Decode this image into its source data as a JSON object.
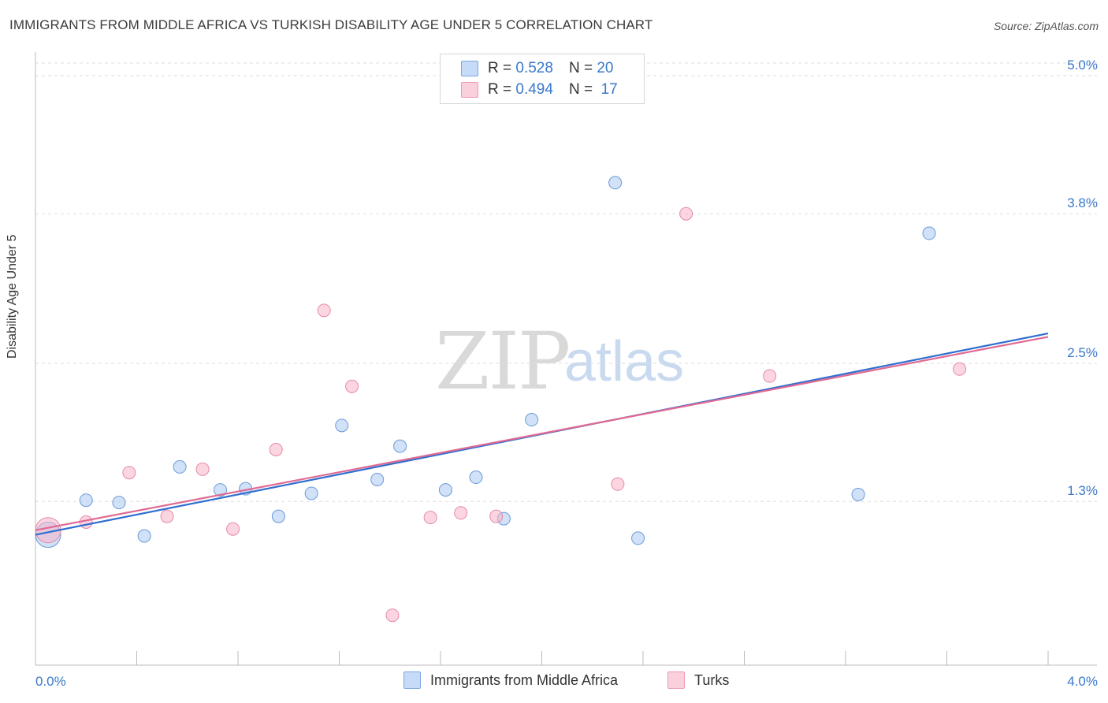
{
  "header": {
    "title": "IMMIGRANTS FROM MIDDLE AFRICA VS TURKISH DISABILITY AGE UNDER 5 CORRELATION CHART",
    "source": "Source: ZipAtlas.com"
  },
  "legend_top": {
    "rows": [
      {
        "r_label": "R =",
        "r_value": "0.528",
        "n_label": "N =",
        "n_value": "20",
        "color": "#a9c8f2"
      },
      {
        "r_label": "R =",
        "r_value": "0.494",
        "n_label": "N =",
        "n_value": "17",
        "color": "#f7b5c8"
      }
    ]
  },
  "legend_bottom": {
    "items": [
      {
        "label": "Immigrants from Middle Africa",
        "color": "#a9c8f2"
      },
      {
        "label": "Turks",
        "color": "#f7b5c8"
      }
    ]
  },
  "watermark": {
    "zip": "ZIP",
    "atlas": "atlas"
  },
  "chart_data": {
    "type": "scatter",
    "title": "IMMIGRANTS FROM MIDDLE AFRICA VS TURKISH DISABILITY AGE UNDER 5 CORRELATION CHART",
    "xlabel": "",
    "ylabel": "Disability Age Under 5",
    "xlim": [
      0.0,
      4.0
    ],
    "ylim": [
      0.0,
      5.0
    ],
    "x_tick_labels": [
      "0.0%",
      "4.0%"
    ],
    "y_ticks": [
      1.3,
      2.5,
      3.8,
      5.0
    ],
    "y_tick_labels": [
      "1.3%",
      "2.5%",
      "3.8%",
      "5.0%"
    ],
    "grid": true,
    "legend_position": "top-center",
    "series": [
      {
        "name": "Immigrants from Middle Africa",
        "color": "#a9c8f2",
        "edge": "#6a9bd8",
        "line_color": "#2f6fd0",
        "points": [
          {
            "x": 0.05,
            "y": 1.01,
            "big": true
          },
          {
            "x": 0.2,
            "y": 1.31
          },
          {
            "x": 0.33,
            "y": 1.29
          },
          {
            "x": 0.43,
            "y": 1.0
          },
          {
            "x": 0.57,
            "y": 1.6
          },
          {
            "x": 0.73,
            "y": 1.4
          },
          {
            "x": 0.83,
            "y": 1.41
          },
          {
            "x": 0.96,
            "y": 1.17
          },
          {
            "x": 1.09,
            "y": 1.37
          },
          {
            "x": 1.21,
            "y": 1.96
          },
          {
            "x": 1.35,
            "y": 1.49
          },
          {
            "x": 1.44,
            "y": 1.78
          },
          {
            "x": 1.62,
            "y": 1.4
          },
          {
            "x": 1.74,
            "y": 1.51
          },
          {
            "x": 1.85,
            "y": 1.15
          },
          {
            "x": 1.96,
            "y": 2.01
          },
          {
            "x": 2.29,
            "y": 4.07
          },
          {
            "x": 2.38,
            "y": 0.98
          },
          {
            "x": 3.25,
            "y": 1.36
          },
          {
            "x": 3.53,
            "y": 3.63
          }
        ],
        "trend": {
          "x1": 0.0,
          "y1": 1.01,
          "x2": 4.0,
          "y2": 2.76
        }
      },
      {
        "name": "Turks",
        "color": "#f7b5c8",
        "edge": "#e68aa8",
        "line_color": "#e06a93",
        "points": [
          {
            "x": 0.05,
            "y": 1.05,
            "big": true
          },
          {
            "x": 0.2,
            "y": 1.12
          },
          {
            "x": 0.37,
            "y": 1.55
          },
          {
            "x": 0.52,
            "y": 1.17
          },
          {
            "x": 0.66,
            "y": 1.58
          },
          {
            "x": 0.78,
            "y": 1.06
          },
          {
            "x": 0.95,
            "y": 1.75
          },
          {
            "x": 1.14,
            "y": 2.96
          },
          {
            "x": 1.25,
            "y": 2.3
          },
          {
            "x": 1.41,
            "y": 0.31
          },
          {
            "x": 1.56,
            "y": 1.16
          },
          {
            "x": 1.68,
            "y": 1.2
          },
          {
            "x": 1.82,
            "y": 1.17
          },
          {
            "x": 2.3,
            "y": 1.45
          },
          {
            "x": 2.57,
            "y": 3.8
          },
          {
            "x": 2.9,
            "y": 2.39
          },
          {
            "x": 3.65,
            "y": 2.45
          }
        ],
        "trend": {
          "x1": 0.0,
          "y1": 1.05,
          "x2": 4.0,
          "y2": 2.73
        }
      }
    ]
  }
}
